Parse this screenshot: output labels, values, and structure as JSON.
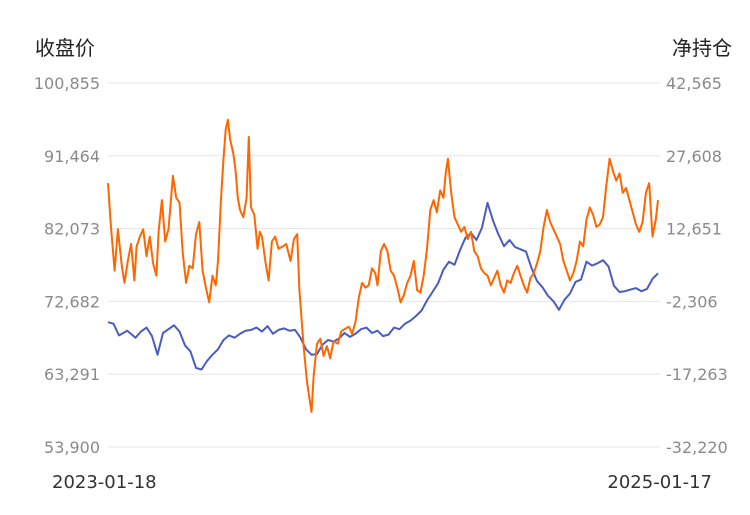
{
  "chart_data": {
    "type": "line",
    "left_axis_title": "收盘价",
    "right_axis_title": "净持仓",
    "x_start_label": "2023-01-18",
    "x_end_label": "2025-01-17",
    "left_axis": {
      "ticks": [
        100855,
        91464,
        82073,
        72682,
        63291,
        53900
      ],
      "tick_labels": [
        "100,855",
        "91,464",
        "82,073",
        "72,682",
        "63,291",
        "53,900"
      ],
      "range": [
        53900,
        100855
      ]
    },
    "right_axis": {
      "ticks": [
        42565,
        27608,
        12651,
        -2306,
        -17263,
        -32220
      ],
      "tick_labels": [
        "42,565",
        "27,608",
        "12,651",
        "-2,306",
        "-17,263",
        "-32,220"
      ],
      "range": [
        -32220,
        42565
      ]
    },
    "grid": true,
    "series": [
      {
        "axis": "left",
        "color": "#4a5dbf",
        "points": [
          [
            0.0,
            70.0
          ],
          [
            0.01,
            69.8
          ],
          [
            0.02,
            68.3
          ],
          [
            0.035,
            68.9
          ],
          [
            0.05,
            68.0
          ],
          [
            0.06,
            68.8
          ],
          [
            0.07,
            69.3
          ],
          [
            0.08,
            68.2
          ],
          [
            0.09,
            65.8
          ],
          [
            0.1,
            68.6
          ],
          [
            0.11,
            69.1
          ],
          [
            0.12,
            69.6
          ],
          [
            0.13,
            68.8
          ],
          [
            0.14,
            67.0
          ],
          [
            0.15,
            66.2
          ],
          [
            0.16,
            64.1
          ],
          [
            0.17,
            63.9
          ],
          [
            0.18,
            65.0
          ],
          [
            0.19,
            65.8
          ],
          [
            0.2,
            66.5
          ],
          [
            0.21,
            67.7
          ],
          [
            0.22,
            68.3
          ],
          [
            0.23,
            68.0
          ],
          [
            0.24,
            68.5
          ],
          [
            0.25,
            68.9
          ],
          [
            0.26,
            69.0
          ],
          [
            0.27,
            69.3
          ],
          [
            0.28,
            68.8
          ],
          [
            0.29,
            69.5
          ],
          [
            0.3,
            68.5
          ],
          [
            0.31,
            69.0
          ],
          [
            0.32,
            69.2
          ],
          [
            0.33,
            68.9
          ],
          [
            0.34,
            69.0
          ],
          [
            0.35,
            68.0
          ],
          [
            0.36,
            66.5
          ],
          [
            0.37,
            65.8
          ],
          [
            0.38,
            65.9
          ],
          [
            0.39,
            67.1
          ],
          [
            0.4,
            67.7
          ],
          [
            0.41,
            67.5
          ],
          [
            0.42,
            67.9
          ],
          [
            0.43,
            68.6
          ],
          [
            0.44,
            68.1
          ],
          [
            0.45,
            68.5
          ],
          [
            0.46,
            69.1
          ],
          [
            0.47,
            69.3
          ],
          [
            0.48,
            68.6
          ],
          [
            0.49,
            68.9
          ],
          [
            0.5,
            68.2
          ],
          [
            0.51,
            68.4
          ],
          [
            0.52,
            69.3
          ],
          [
            0.53,
            69.1
          ],
          [
            0.54,
            69.8
          ],
          [
            0.55,
            70.2
          ],
          [
            0.56,
            70.8
          ],
          [
            0.57,
            71.5
          ],
          [
            0.58,
            72.8
          ],
          [
            0.59,
            73.9
          ],
          [
            0.6,
            75.0
          ],
          [
            0.61,
            76.8
          ],
          [
            0.62,
            77.8
          ],
          [
            0.63,
            77.4
          ],
          [
            0.64,
            79.3
          ],
          [
            0.65,
            80.9
          ],
          [
            0.66,
            81.5
          ],
          [
            0.67,
            80.6
          ],
          [
            0.68,
            82.2
          ],
          [
            0.69,
            85.4
          ],
          [
            0.7,
            83.1
          ],
          [
            0.71,
            81.3
          ],
          [
            0.72,
            79.8
          ],
          [
            0.73,
            80.6
          ],
          [
            0.74,
            79.7
          ],
          [
            0.75,
            79.4
          ],
          [
            0.76,
            79.1
          ],
          [
            0.77,
            77.0
          ],
          [
            0.78,
            75.3
          ],
          [
            0.79,
            74.5
          ],
          [
            0.8,
            73.4
          ],
          [
            0.81,
            72.7
          ],
          [
            0.82,
            71.6
          ],
          [
            0.83,
            72.9
          ],
          [
            0.84,
            73.7
          ],
          [
            0.85,
            75.2
          ],
          [
            0.86,
            75.5
          ],
          [
            0.87,
            77.8
          ],
          [
            0.88,
            77.3
          ],
          [
            0.89,
            77.6
          ],
          [
            0.9,
            78.0
          ],
          [
            0.91,
            77.2
          ],
          [
            0.92,
            74.7
          ],
          [
            0.93,
            73.9
          ],
          [
            0.94,
            74.0
          ],
          [
            0.95,
            74.2
          ],
          [
            0.96,
            74.4
          ],
          [
            0.97,
            74.0
          ],
          [
            0.98,
            74.3
          ],
          [
            0.99,
            75.6
          ],
          [
            1.0,
            76.3
          ]
        ]
      },
      {
        "axis": "right",
        "color": "#ff6600",
        "points": [
          [
            0.0,
            22.0
          ],
          [
            0.005,
            13.5
          ],
          [
            0.012,
            4.0
          ],
          [
            0.018,
            12.5
          ],
          [
            0.025,
            5.0
          ],
          [
            0.03,
            1.5
          ],
          [
            0.036,
            6.0
          ],
          [
            0.042,
            9.5
          ],
          [
            0.048,
            2.0
          ],
          [
            0.052,
            9.0
          ],
          [
            0.058,
            11.0
          ],
          [
            0.064,
            12.5
          ],
          [
            0.07,
            7.0
          ],
          [
            0.076,
            11.0
          ],
          [
            0.082,
            5.5
          ],
          [
            0.088,
            3.0
          ],
          [
            0.092,
            12.0
          ],
          [
            0.098,
            18.5
          ],
          [
            0.104,
            10.0
          ],
          [
            0.11,
            12.5
          ],
          [
            0.118,
            23.5
          ],
          [
            0.124,
            19.0
          ],
          [
            0.13,
            18.0
          ],
          [
            0.136,
            7.5
          ],
          [
            0.142,
            1.5
          ],
          [
            0.148,
            5.0
          ],
          [
            0.154,
            4.5
          ],
          [
            0.16,
            11.5
          ],
          [
            0.166,
            14.0
          ],
          [
            0.172,
            4.0
          ],
          [
            0.178,
            0.5
          ],
          [
            0.184,
            -2.5
          ],
          [
            0.19,
            3.0
          ],
          [
            0.196,
            1.0
          ],
          [
            0.2,
            6.0
          ],
          [
            0.205,
            18.0
          ],
          [
            0.21,
            27.0
          ],
          [
            0.214,
            33.0
          ],
          [
            0.218,
            35.0
          ],
          [
            0.222,
            31.0
          ],
          [
            0.228,
            28.0
          ],
          [
            0.232,
            24.5
          ],
          [
            0.236,
            19.0
          ],
          [
            0.24,
            16.5
          ],
          [
            0.246,
            15.0
          ],
          [
            0.252,
            19.0
          ],
          [
            0.256,
            31.5
          ],
          [
            0.26,
            17.0
          ],
          [
            0.266,
            15.5
          ],
          [
            0.272,
            8.5
          ],
          [
            0.276,
            12.0
          ],
          [
            0.28,
            11.0
          ],
          [
            0.286,
            6.0
          ],
          [
            0.292,
            2.0
          ],
          [
            0.298,
            10.0
          ],
          [
            0.304,
            11.0
          ],
          [
            0.31,
            8.5
          ],
          [
            0.318,
            9.0
          ],
          [
            0.324,
            9.5
          ],
          [
            0.332,
            6.0
          ],
          [
            0.338,
            10.5
          ],
          [
            0.344,
            11.5
          ],
          [
            0.348,
            0.0
          ],
          [
            0.352,
            -6.0
          ],
          [
            0.356,
            -12.0
          ],
          [
            0.362,
            -19.0
          ],
          [
            0.366,
            -22.0
          ],
          [
            0.37,
            -25.0
          ],
          [
            0.374,
            -17.5
          ],
          [
            0.38,
            -11.0
          ],
          [
            0.386,
            -10.0
          ],
          [
            0.392,
            -13.5
          ],
          [
            0.398,
            -11.5
          ],
          [
            0.404,
            -14.0
          ],
          [
            0.41,
            -10.5
          ],
          [
            0.418,
            -11.0
          ],
          [
            0.424,
            -8.5
          ],
          [
            0.43,
            -8.0
          ],
          [
            0.438,
            -7.5
          ],
          [
            0.444,
            -9.0
          ],
          [
            0.45,
            -6.5
          ],
          [
            0.456,
            -1.5
          ],
          [
            0.462,
            1.5
          ],
          [
            0.468,
            0.5
          ],
          [
            0.474,
            1.0
          ],
          [
            0.48,
            4.5
          ],
          [
            0.486,
            3.5
          ],
          [
            0.49,
            1.0
          ],
          [
            0.496,
            8.0
          ],
          [
            0.502,
            9.5
          ],
          [
            0.508,
            8.0
          ],
          [
            0.514,
            4.0
          ],
          [
            0.52,
            3.0
          ],
          [
            0.526,
            0.5
          ],
          [
            0.532,
            -2.5
          ],
          [
            0.538,
            -1.0
          ],
          [
            0.544,
            1.5
          ],
          [
            0.55,
            3.0
          ],
          [
            0.556,
            6.0
          ],
          [
            0.562,
            0.0
          ],
          [
            0.568,
            -0.5
          ],
          [
            0.574,
            3.0
          ],
          [
            0.58,
            8.5
          ],
          [
            0.586,
            16.5
          ],
          [
            0.592,
            18.5
          ],
          [
            0.598,
            16.0
          ],
          [
            0.604,
            20.5
          ],
          [
            0.61,
            19.0
          ],
          [
            0.614,
            24.0
          ],
          [
            0.618,
            27.0
          ],
          [
            0.624,
            20.0
          ],
          [
            0.63,
            15.0
          ],
          [
            0.636,
            13.5
          ],
          [
            0.642,
            12.0
          ],
          [
            0.648,
            13.0
          ],
          [
            0.654,
            10.5
          ],
          [
            0.66,
            12.0
          ],
          [
            0.666,
            8.0
          ],
          [
            0.672,
            7.0
          ],
          [
            0.678,
            4.5
          ],
          [
            0.684,
            3.5
          ],
          [
            0.69,
            3.0
          ],
          [
            0.696,
            1.0
          ],
          [
            0.702,
            2.5
          ],
          [
            0.708,
            4.0
          ],
          [
            0.714,
            1.0
          ],
          [
            0.72,
            -0.5
          ],
          [
            0.726,
            2.0
          ],
          [
            0.732,
            1.5
          ],
          [
            0.738,
            3.5
          ],
          [
            0.744,
            5.0
          ],
          [
            0.75,
            3.0
          ],
          [
            0.756,
            1.0
          ],
          [
            0.762,
            -0.5
          ],
          [
            0.768,
            2.5
          ],
          [
            0.774,
            3.5
          ],
          [
            0.78,
            5.5
          ],
          [
            0.786,
            8.0
          ],
          [
            0.792,
            13.0
          ],
          [
            0.798,
            16.5
          ],
          [
            0.804,
            14.0
          ],
          [
            0.81,
            12.5
          ],
          [
            0.816,
            11.0
          ],
          [
            0.822,
            9.5
          ],
          [
            0.828,
            6.0
          ],
          [
            0.834,
            4.0
          ],
          [
            0.84,
            2.0
          ],
          [
            0.846,
            3.5
          ],
          [
            0.852,
            6.0
          ],
          [
            0.858,
            10.0
          ],
          [
            0.864,
            9.0
          ],
          [
            0.87,
            14.5
          ],
          [
            0.876,
            17.0
          ],
          [
            0.882,
            15.5
          ],
          [
            0.888,
            13.0
          ],
          [
            0.894,
            13.5
          ],
          [
            0.9,
            15.0
          ],
          [
            0.906,
            21.5
          ],
          [
            0.912,
            27.0
          ],
          [
            0.918,
            24.5
          ],
          [
            0.924,
            22.5
          ],
          [
            0.93,
            24.0
          ],
          [
            0.936,
            20.0
          ],
          [
            0.942,
            21.0
          ],
          [
            0.948,
            18.5
          ],
          [
            0.954,
            16.0
          ],
          [
            0.96,
            13.5
          ],
          [
            0.966,
            12.0
          ],
          [
            0.972,
            14.0
          ],
          [
            0.978,
            20.0
          ],
          [
            0.984,
            22.0
          ],
          [
            0.99,
            11.0
          ],
          [
            0.996,
            14.5
          ],
          [
            1.0,
            18.5
          ]
        ]
      }
    ]
  }
}
